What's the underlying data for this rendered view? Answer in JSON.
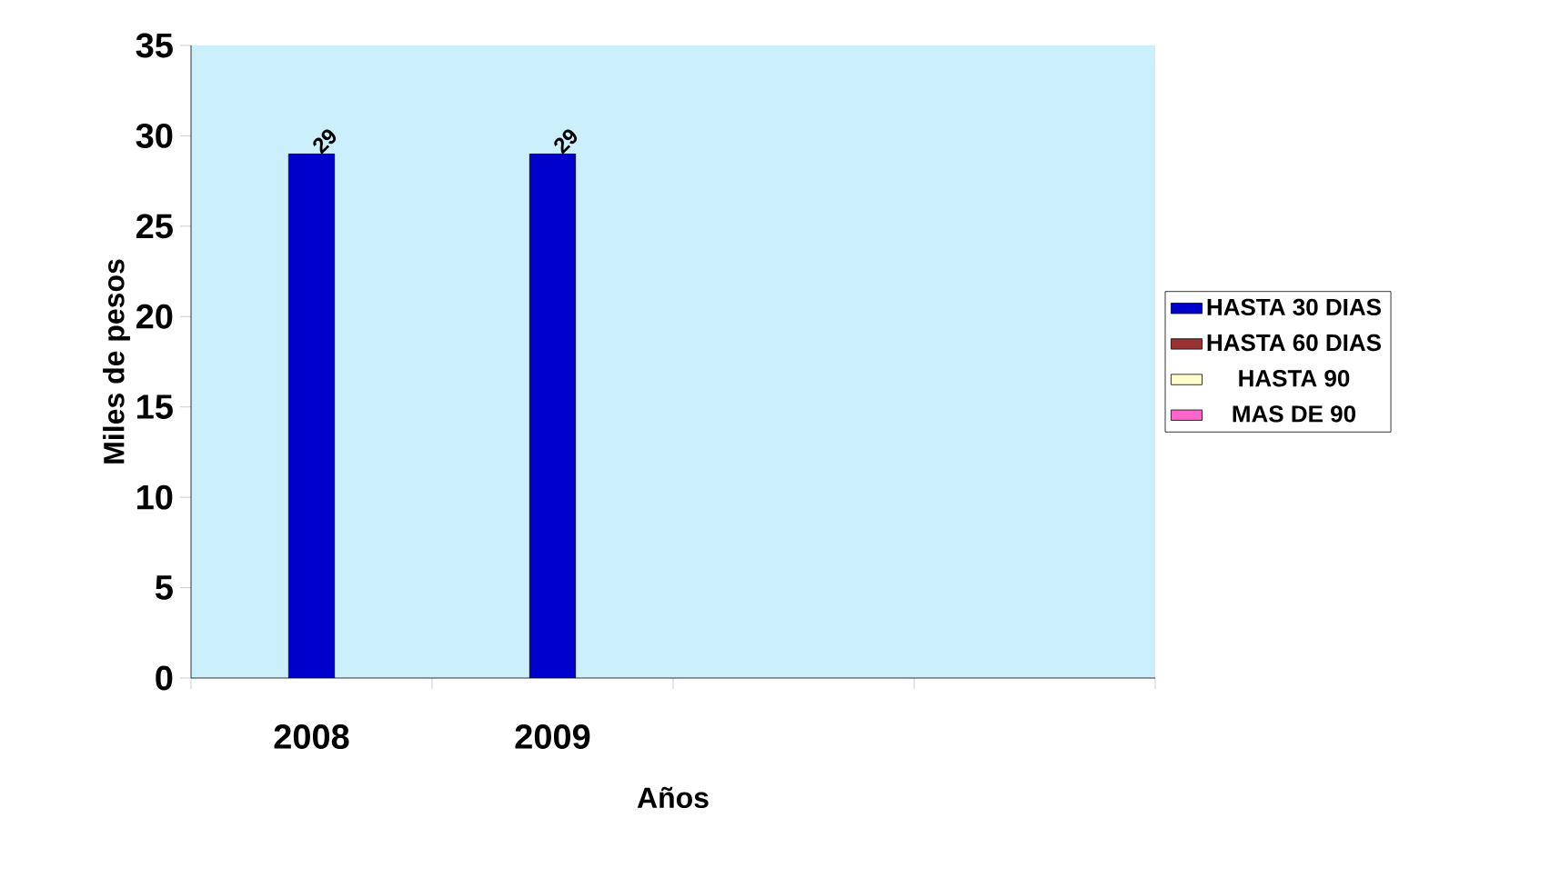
{
  "chart_data": {
    "type": "bar",
    "xlabel": "Años",
    "ylabel": "Miles de pesos",
    "categories": [
      "2008",
      "2009",
      null,
      null
    ],
    "series": [
      {
        "name": "HASTA 30 DIAS",
        "color": "#0000cc",
        "values": [
          29,
          29,
          null,
          null
        ]
      },
      {
        "name": "HASTA 60 DIAS",
        "color": "#993333",
        "values": [
          null,
          null,
          null,
          null
        ]
      },
      {
        "name": "HASTA 90",
        "color": "#ffffcc",
        "values": [
          null,
          null,
          null,
          null
        ]
      },
      {
        "name": "MAS DE 90",
        "color": "#ff66cc",
        "values": [
          null,
          null,
          null,
          null
        ]
      }
    ],
    "ylim": [
      0,
      35
    ],
    "yticks": [
      0,
      5,
      10,
      15,
      20,
      25,
      30,
      35
    ],
    "data_labels": true,
    "legend": "right",
    "grid": false
  }
}
